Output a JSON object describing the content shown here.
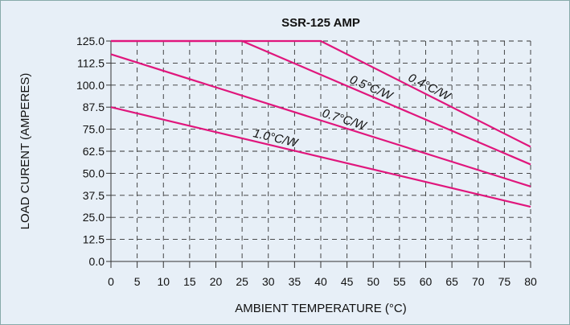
{
  "chart_data": {
    "type": "line",
    "title": "SSR-125 AMP",
    "xlabel": "AMBIENT TEMPERATURE (°C)",
    "ylabel": "LOAD CURENT (AMPERES)",
    "xlim": [
      0,
      80
    ],
    "xticks": [
      0,
      5,
      10,
      15,
      20,
      25,
      30,
      35,
      40,
      45,
      50,
      55,
      60,
      65,
      70,
      75,
      80
    ],
    "ylim": [
      0,
      125
    ],
    "yticks": [
      {
        "value": 0,
        "label": "0.0"
      },
      12.5,
      {
        "value": 25,
        "label": "25.0"
      },
      37.5,
      {
        "value": 50,
        "label": "50.0"
      },
      62.5,
      {
        "value": 75,
        "label": "75.0"
      },
      87.5,
      {
        "value": 100,
        "label": "100.0"
      },
      112.5,
      {
        "value": 125,
        "label": "125.0"
      }
    ],
    "grid": true,
    "series": [
      {
        "name": "0.4°C/W",
        "color": "#e0167c",
        "x": [
          0,
          40,
          80
        ],
        "values": [
          125,
          125,
          65
        ]
      },
      {
        "name": "0.5°C/W",
        "color": "#e0167c",
        "x": [
          0,
          25,
          80
        ],
        "values": [
          125,
          125,
          55
        ]
      },
      {
        "name": "0.7°C/W",
        "color": "#e0167c",
        "x": [
          0,
          80
        ],
        "values": [
          117.5,
          42.5
        ]
      },
      {
        "name": "1.0°C/W",
        "color": "#e0167c",
        "x": [
          0,
          80
        ],
        "values": [
          87.5,
          31
        ]
      }
    ]
  }
}
